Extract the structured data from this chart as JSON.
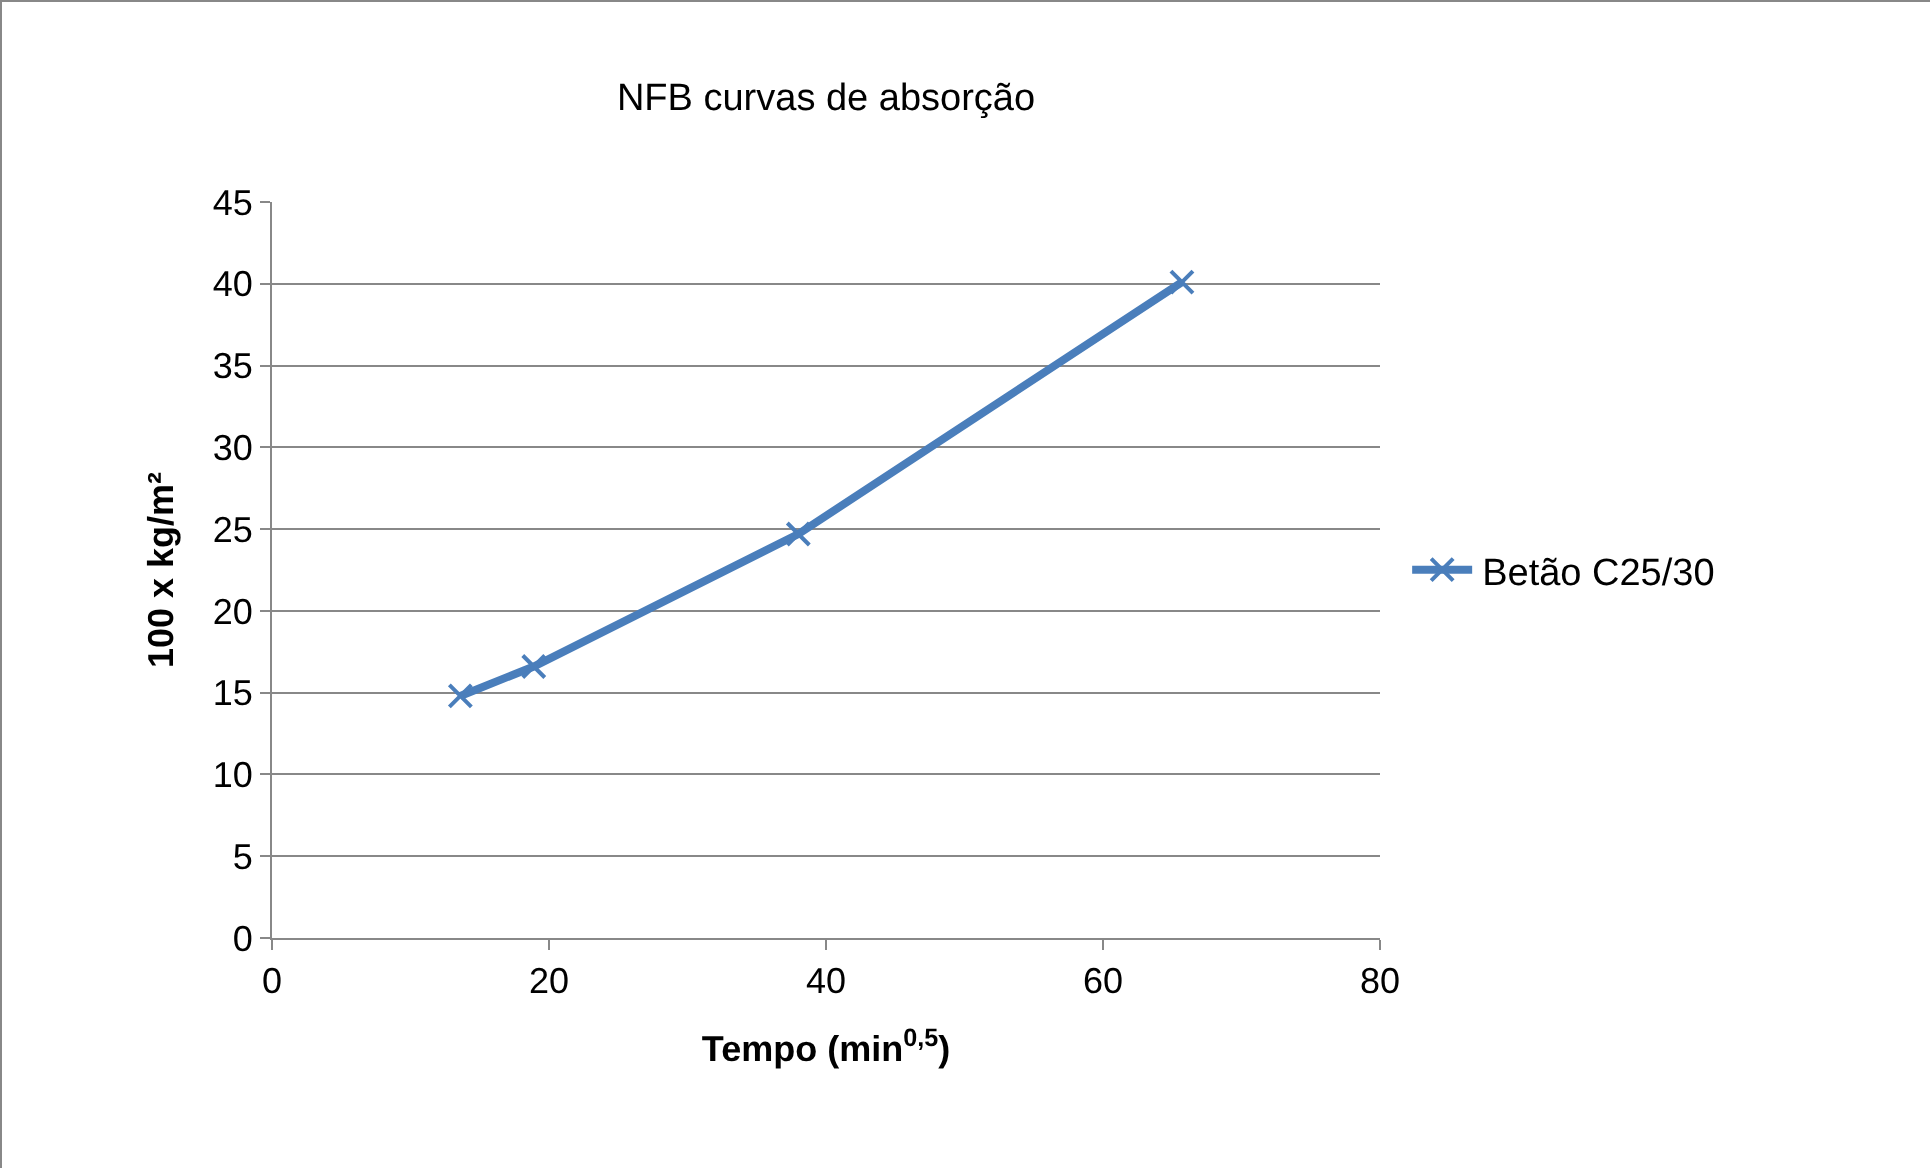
{
  "chart_data": {
    "type": "line",
    "title": "NFB curvas de absorção",
    "xlabel": "Tempo (min$^{0,5}$)",
    "ylabel": "100 x kg/m²",
    "x": [
      13.6,
      18.9,
      38,
      65.7
    ],
    "series": [
      {
        "name": "Betão C25/30",
        "color": "#4a7ebb",
        "values": [
          14.8,
          16.6,
          24.7,
          40.1
        ]
      }
    ],
    "xlim": [
      0,
      80
    ],
    "xticks": [
      0,
      20,
      40,
      60,
      80
    ],
    "ylim": [
      0,
      45
    ],
    "yticks": [
      0,
      5,
      10,
      15,
      20,
      25,
      30,
      35,
      40,
      45
    ],
    "grid": "y",
    "legend": "right",
    "marker": "cross",
    "line_style": "solid"
  }
}
